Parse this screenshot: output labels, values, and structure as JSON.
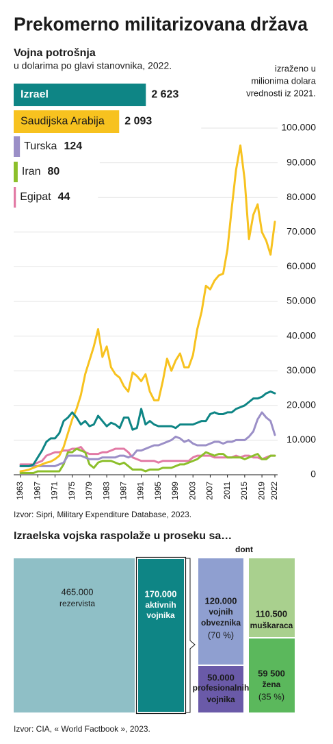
{
  "chart_data": {
    "type": "line",
    "title": "Prekomerno militarizovana država",
    "subtitle": "Vojna potrošnja",
    "subtitle2": "u dolarima po glavi stanovnika, 2022.",
    "note": [
      "izraženo u",
      "milionima dolara",
      "vrednosti iz 2021."
    ],
    "source": "Izvor: Sipri, Military Expenditure Database, 2023.",
    "per_capita": {
      "values": [
        2623,
        2093,
        124,
        80,
        44
      ],
      "value_labels": [
        "2 623",
        "2 093",
        "124",
        "80",
        "44"
      ]
    },
    "x": [
      1963,
      1964,
      1965,
      1966,
      1967,
      1968,
      1969,
      1970,
      1971,
      1972,
      1973,
      1974,
      1975,
      1976,
      1977,
      1978,
      1979,
      1980,
      1981,
      1982,
      1983,
      1984,
      1985,
      1986,
      1987,
      1988,
      1989,
      1990,
      1991,
      1992,
      1993,
      1994,
      1995,
      1996,
      1997,
      1998,
      1999,
      2000,
      2001,
      2002,
      2003,
      2004,
      2005,
      2006,
      2007,
      2008,
      2009,
      2010,
      2011,
      2012,
      2013,
      2014,
      2015,
      2016,
      2017,
      2018,
      2019,
      2020,
      2021,
      2022
    ],
    "xlim": [
      1963,
      2022
    ],
    "xticks": [
      1963,
      1967,
      1971,
      1975,
      1979,
      1983,
      1987,
      1991,
      1995,
      1999,
      2003,
      2007,
      2011,
      2015,
      2019,
      2022
    ],
    "ylim": [
      0,
      100000
    ],
    "yticks": [
      0,
      {
        "value": 10000,
        "label": "10.000"
      },
      {
        "value": 20000,
        "label": "20.000"
      },
      {
        "value": 30000,
        "label": "30.000"
      },
      {
        "value": 40000,
        "label": "40.000"
      },
      {
        "value": 50000,
        "label": "50.000"
      },
      {
        "value": 60000,
        "label": "60.000"
      },
      {
        "value": 70000,
        "label": "70.000"
      },
      {
        "value": 80000,
        "label": "80.000"
      },
      {
        "value": 90000,
        "label": "90.000"
      },
      {
        "value": 100000,
        "label": "100.000"
      }
    ],
    "grid": true,
    "series": [
      {
        "name": "Izrael",
        "color": "#0e8585",
        "values": [
          2500,
          2500,
          2500,
          3000,
          5000,
          7000,
          9500,
          10500,
          10500,
          12000,
          15500,
          16500,
          18000,
          16500,
          14500,
          15500,
          14000,
          14500,
          17000,
          15500,
          14000,
          15000,
          14500,
          13500,
          16500,
          16500,
          13000,
          13500,
          19000,
          14500,
          15500,
          14500,
          14000,
          14000,
          14000,
          14000,
          13500,
          14500,
          14500,
          14500,
          14500,
          15000,
          15500,
          15500,
          17500,
          18000,
          17500,
          17500,
          18000,
          18000,
          19000,
          19500,
          20000,
          21000,
          22000,
          22000,
          22500,
          23500,
          24000,
          23500
        ]
      },
      {
        "name": "Saudijska Arabija",
        "color": "#f7c21f",
        "values": [
          1000,
          1200,
          1500,
          2000,
          2500,
          3000,
          3500,
          3800,
          4500,
          5500,
          8000,
          12000,
          16000,
          19000,
          23000,
          29000,
          33000,
          37000,
          42000,
          34000,
          37000,
          31000,
          29000,
          28000,
          25500,
          24000,
          29500,
          28500,
          27000,
          29000,
          24000,
          21500,
          21500,
          27000,
          33500,
          30000,
          33000,
          35000,
          31000,
          31000,
          34500,
          42000,
          47000,
          54500,
          53500,
          56000,
          57500,
          58000,
          65000,
          77000,
          88000,
          95000,
          85000,
          68000,
          75000,
          78000,
          70000,
          67500,
          63500,
          73000
        ]
      },
      {
        "name": "Turska",
        "color": "#9b8fc7",
        "values": [
          2500,
          2500,
          2500,
          2500,
          2500,
          2500,
          2500,
          2500,
          2500,
          3000,
          3500,
          5500,
          5500,
          5500,
          5500,
          5000,
          4500,
          4500,
          4500,
          5000,
          5000,
          5000,
          5000,
          5500,
          5500,
          5000,
          5500,
          7000,
          7000,
          7500,
          8000,
          8500,
          8500,
          9000,
          9500,
          10000,
          11000,
          10500,
          9500,
          10000,
          9000,
          8500,
          8500,
          8500,
          9000,
          9500,
          9500,
          9000,
          9500,
          9500,
          10000,
          10000,
          10000,
          11000,
          12500,
          16000,
          18000,
          16500,
          15500,
          11500
        ]
      },
      {
        "name": "Iran",
        "color": "#8cbf2b",
        "values": [
          500,
          500,
          500,
          500,
          1000,
          1000,
          1000,
          1000,
          1000,
          1000,
          3000,
          6500,
          6500,
          7500,
          7000,
          6500,
          3000,
          2000,
          3500,
          4000,
          4000,
          4000,
          3500,
          3000,
          3500,
          2500,
          1500,
          1500,
          1500,
          1000,
          1500,
          1500,
          1500,
          2000,
          2000,
          2000,
          2500,
          3000,
          3000,
          3500,
          4000,
          4500,
          5500,
          6500,
          6000,
          5500,
          6000,
          6000,
          5000,
          5000,
          5000,
          5000,
          4500,
          5000,
          5500,
          6000,
          4500,
          4500,
          5500,
          5500
        ]
      },
      {
        "name": "Egipat",
        "color": "#e27aa5",
        "values": [
          3000,
          3000,
          3000,
          3000,
          3500,
          4000,
          5500,
          6000,
          6500,
          6500,
          7000,
          7000,
          7500,
          7500,
          8000,
          6500,
          6000,
          6000,
          6000,
          6500,
          6500,
          7000,
          7500,
          7500,
          7500,
          6500,
          5000,
          4500,
          4000,
          4000,
          4000,
          4000,
          3500,
          4000,
          4000,
          4000,
          4000,
          4000,
          4000,
          4000,
          5000,
          5500,
          5500,
          5500,
          5500,
          5000,
          5000,
          5000,
          5000,
          5000,
          5500,
          5000,
          5500,
          5500,
          5000,
          5000,
          4500,
          5000,
          5500,
          5500
        ]
      }
    ]
  },
  "army": {
    "title": "Izraelska vojska raspolaže u proseku sa…",
    "dont": "dont",
    "reservists": {
      "value": "465.000",
      "label": "rezervista"
    },
    "active": {
      "value": "170.000",
      "label": [
        "aktivnih",
        "vojnika"
      ]
    },
    "conscripts": {
      "value": "120.000",
      "label": [
        "vojnih",
        "obveznika"
      ],
      "share": "(70 %)"
    },
    "professionals": {
      "value": "50.000",
      "label": [
        "profesionalnih",
        "vojnika"
      ]
    },
    "men": {
      "value": "110.500",
      "label": "muškaraca"
    },
    "women": {
      "value": "59 500",
      "label": "žena",
      "share": "(35 %)"
    },
    "source": "Izvor:  CIA, « World Factbook », 2023."
  }
}
